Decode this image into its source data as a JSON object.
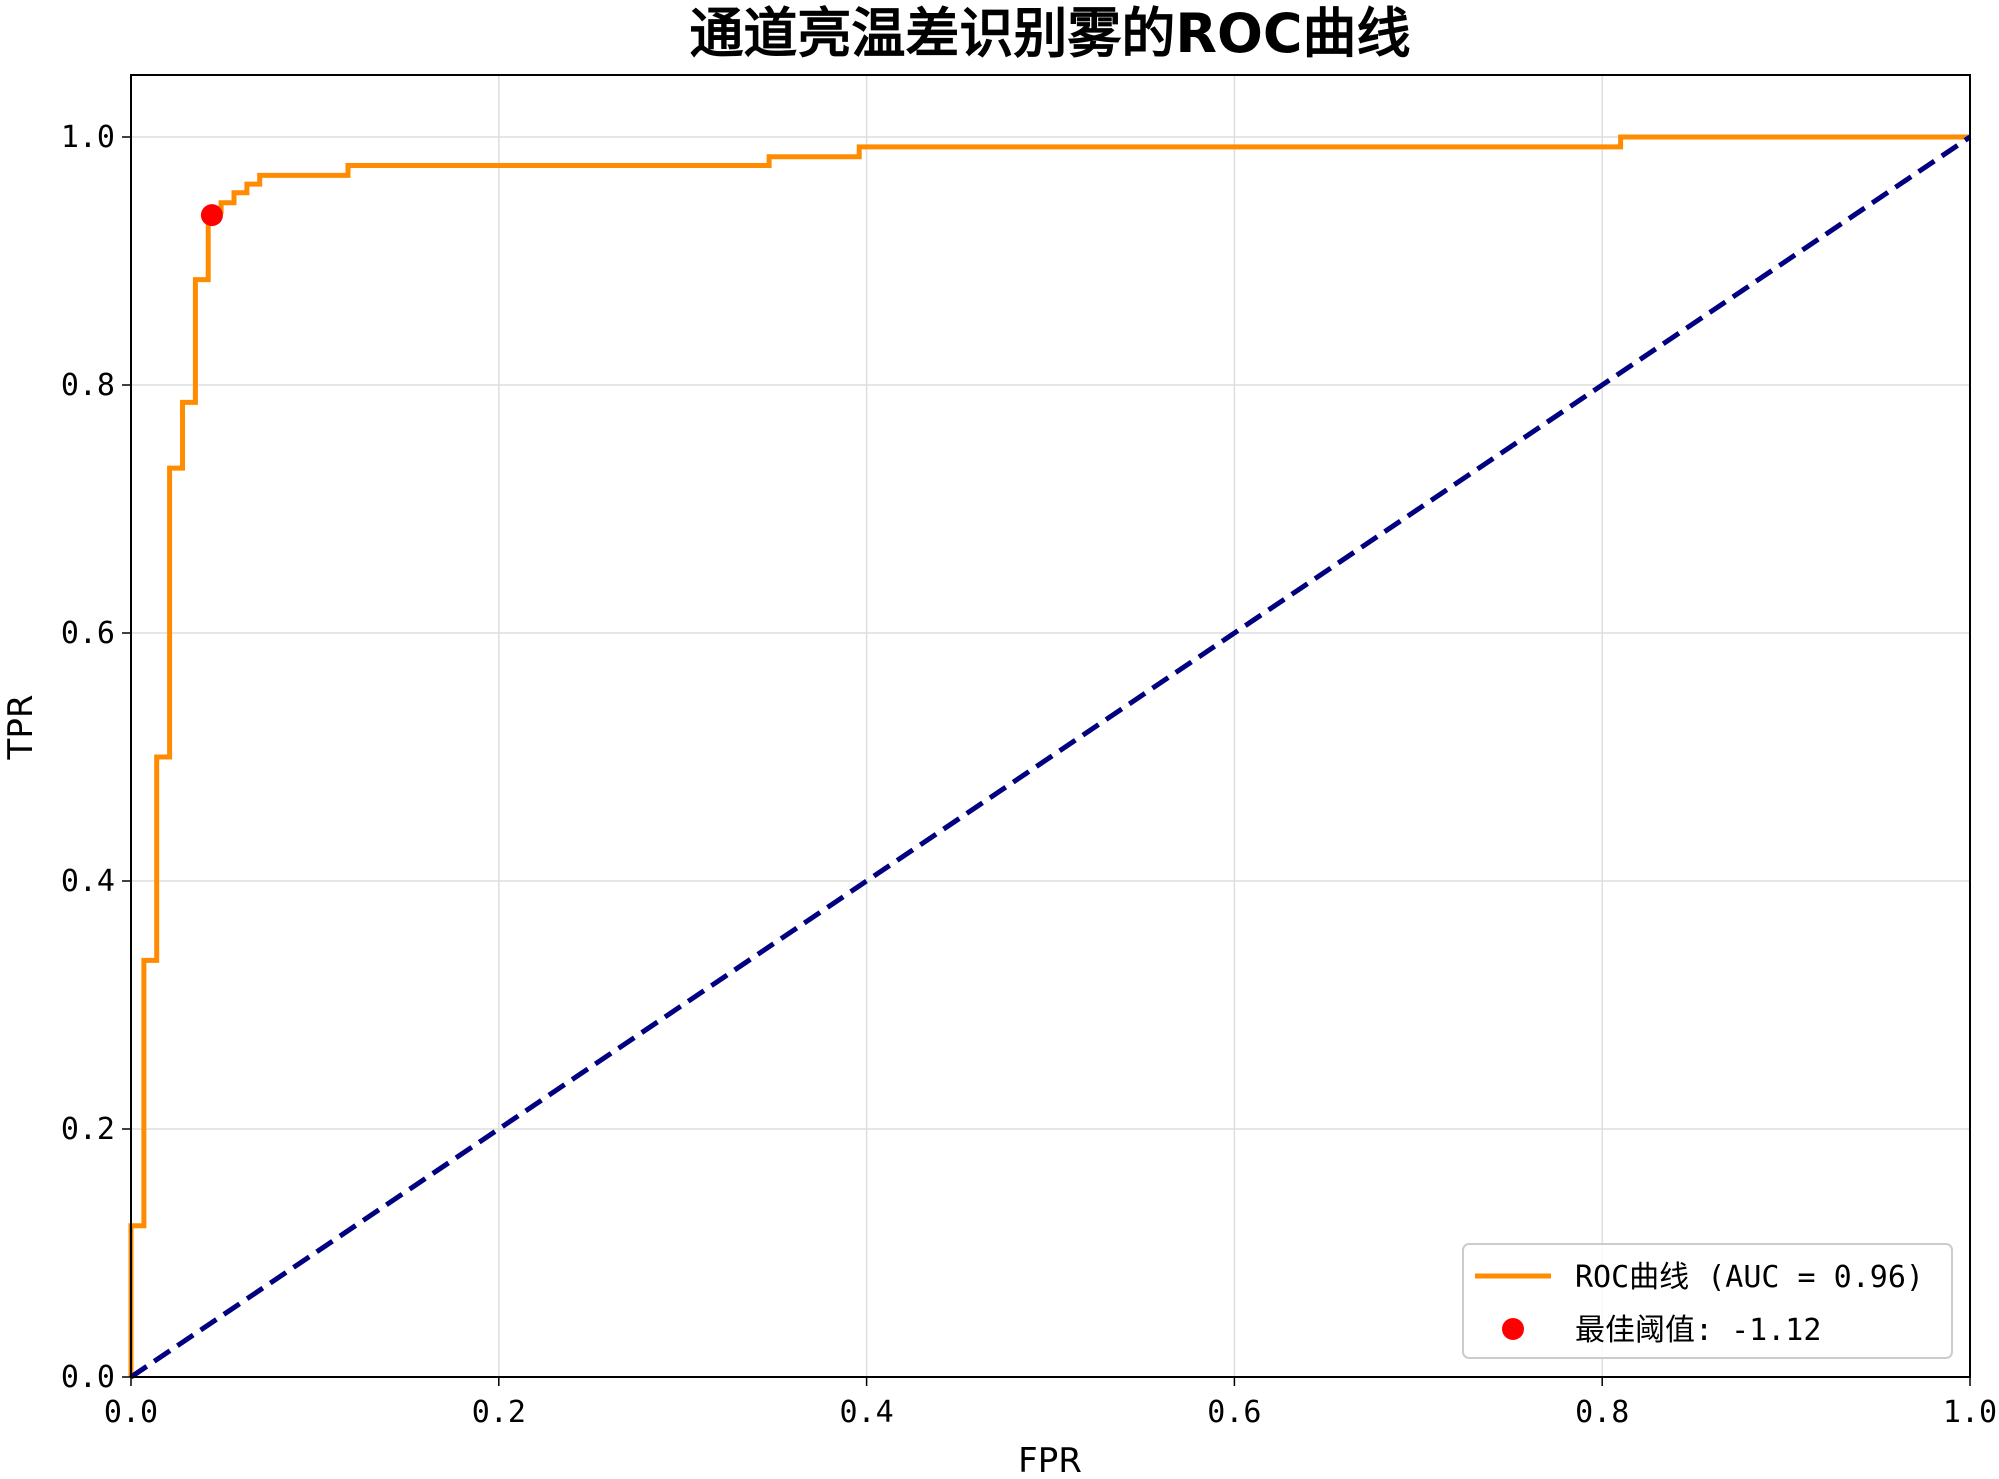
{
  "chart_data": {
    "type": "line",
    "title": "通道亮温差识别雾的ROC曲线",
    "xlabel": "FPR",
    "ylabel": "TPR",
    "xlim": [
      0.0,
      1.0
    ],
    "ylim": [
      0.0,
      1.05
    ],
    "xticks": [
      0.0,
      0.2,
      0.4,
      0.6,
      0.8,
      1.0
    ],
    "yticks": [
      0.0,
      0.2,
      0.4,
      0.6,
      0.8,
      1.0
    ],
    "xtick_labels": [
      "0.0",
      "0.2",
      "0.4",
      "0.6",
      "0.8",
      "1.0"
    ],
    "ytick_labels": [
      "0.0",
      "0.2",
      "0.4",
      "0.6",
      "0.8",
      "1.0"
    ],
    "grid": true,
    "legend_position": "bottom-right",
    "series": [
      {
        "name": "ROC曲线 (AUC = 0.96)",
        "color": "#ff8c00",
        "style": "step",
        "x": [
          0.0,
          0.0,
          0.007,
          0.007,
          0.014,
          0.014,
          0.021,
          0.021,
          0.028,
          0.028,
          0.035,
          0.035,
          0.042,
          0.042,
          0.049,
          0.049,
          0.056,
          0.056,
          0.063,
          0.063,
          0.07,
          0.07,
          0.118,
          0.118,
          0.347,
          0.347,
          0.396,
          0.396,
          0.81,
          0.81,
          0.826,
          0.826,
          1.0
        ],
        "y": [
          0.0,
          0.122,
          0.122,
          0.336,
          0.336,
          0.5,
          0.5,
          0.733,
          0.733,
          0.786,
          0.786,
          0.885,
          0.885,
          0.94,
          0.94,
          0.947,
          0.947,
          0.955,
          0.955,
          0.962,
          0.962,
          0.969,
          0.969,
          0.977,
          0.977,
          0.984,
          0.984,
          0.992,
          0.992,
          1.0,
          1.0,
          1.0,
          1.0
        ]
      },
      {
        "name": "",
        "color": "#000080",
        "style": "dashed",
        "x": [
          0.0,
          1.0
        ],
        "y": [
          0.0,
          1.0
        ]
      }
    ],
    "points": [
      {
        "name": "最佳阈值: -1.12",
        "color": "#ff0000",
        "x": 0.044,
        "y": 0.937
      }
    ]
  }
}
